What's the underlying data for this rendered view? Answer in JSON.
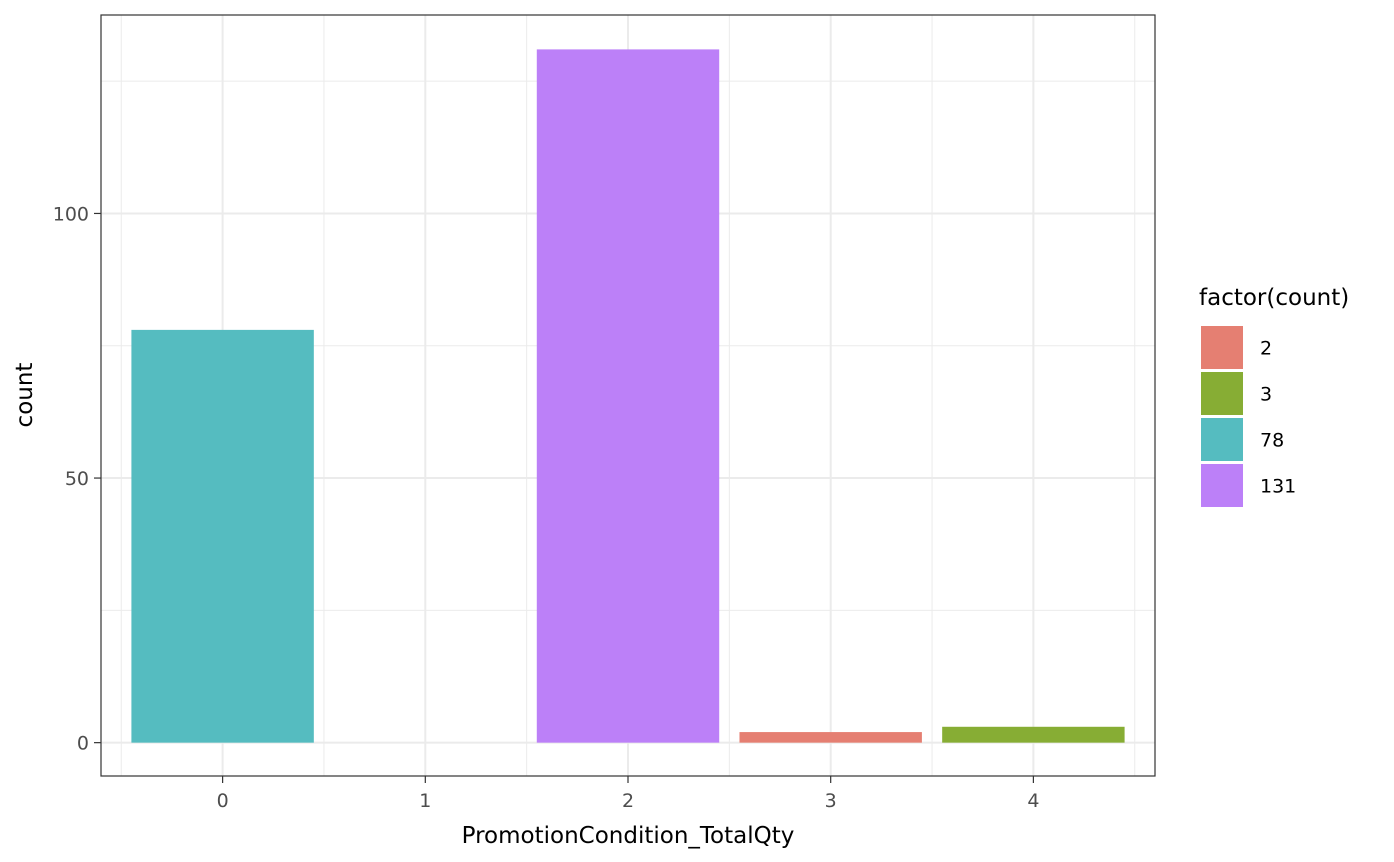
{
  "chart_data": {
    "type": "bar",
    "title": "",
    "xlabel": "PromotionCondition_TotalQty",
    "ylabel": "count",
    "x_ticks": [
      "0",
      "1",
      "2",
      "3",
      "4"
    ],
    "y_ticks": [
      "0",
      "50",
      "100"
    ],
    "xlim": [
      -0.6,
      4.6
    ],
    "ylim": [
      -6.3,
      137.5
    ],
    "grid": true,
    "bars": [
      {
        "x": 0,
        "value": 78,
        "fill_group": "78"
      },
      {
        "x": 2,
        "value": 131,
        "fill_group": "131"
      },
      {
        "x": 3,
        "value": 2,
        "fill_group": "2"
      },
      {
        "x": 4,
        "value": 3,
        "fill_group": "3"
      }
    ],
    "legend": {
      "title": "factor(count)",
      "position": "right",
      "entries": [
        {
          "label": "2",
          "color": "#F8766D"
        },
        {
          "label": "3",
          "color": "#7CAE00"
        },
        {
          "label": "78",
          "color": "#00BFC4"
        },
        {
          "label": "131",
          "color": "#C77CFF"
        }
      ]
    },
    "colors": {
      "2": "#E57F72",
      "3": "#87AD34",
      "78": "#55BCC0",
      "131": "#BC80F8"
    }
  }
}
